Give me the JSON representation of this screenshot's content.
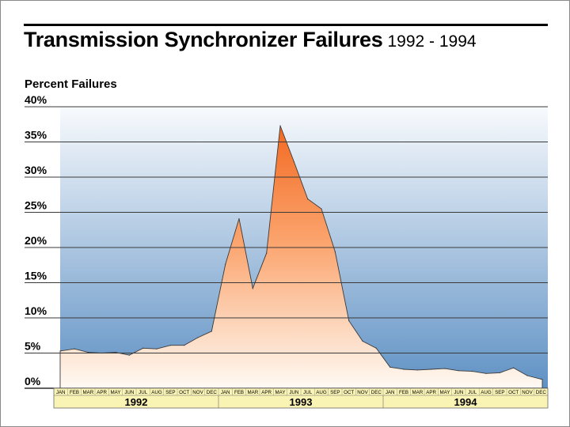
{
  "title": {
    "main": "Transmission Synchronizer Failures",
    "sub": "1992 - 1994"
  },
  "chart_data": {
    "type": "area",
    "title": "Transmission Synchronizer Failures 1992 - 1994",
    "ylabel": "Percent Failures",
    "xlabel": "",
    "ylim": [
      0,
      40
    ],
    "y_ticks": [
      "0%",
      "5%",
      "10%",
      "15%",
      "20%",
      "25%",
      "30%",
      "35%",
      "40%"
    ],
    "grid": true,
    "months": [
      "JAN",
      "FEB",
      "MAR",
      "APR",
      "MAY",
      "JUN",
      "JUL",
      "AUG",
      "SEP",
      "OCT",
      "NOV",
      "DEC"
    ],
    "years": [
      "1992",
      "1993",
      "1994"
    ],
    "series": [
      {
        "values": [
          5.3,
          5.6,
          5.1,
          5.0,
          5.1,
          4.7,
          5.7,
          5.6,
          6.1,
          6.1,
          7.2,
          8.1,
          17.6,
          24.1,
          14.2,
          19.2,
          37.3,
          32.2,
          26.9,
          25.5,
          19.4,
          9.6,
          6.7,
          5.7,
          3.0,
          2.7,
          2.6,
          2.7,
          2.8,
          2.5,
          2.4,
          2.1,
          2.2,
          2.9,
          1.8,
          1.3
        ]
      }
    ],
    "colors": {
      "background_top": "#f8fafd",
      "background_bottom": "#5f91c4",
      "area_peak": "#f26a22",
      "area_base": "#fefaf4",
      "axis_band": "#f9f3b4",
      "gridline": "#3a3a3a"
    }
  }
}
